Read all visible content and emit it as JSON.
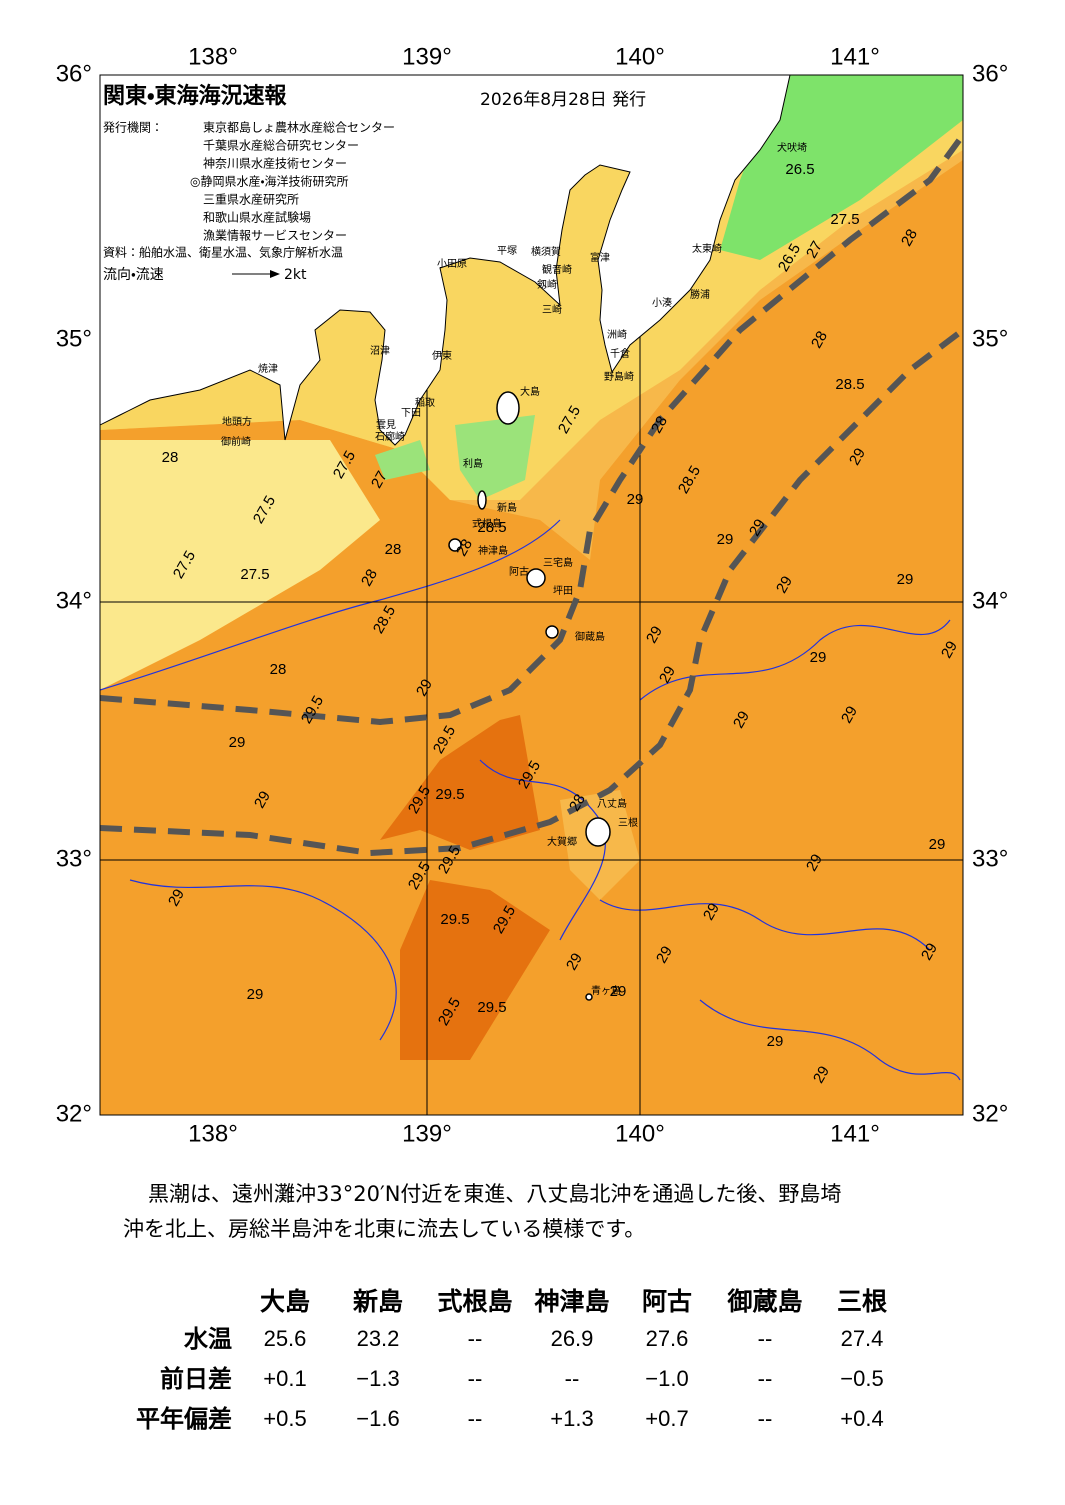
{
  "header": {
    "title": "関東・東海海況速報",
    "date": "2026年8月28日 発行",
    "issuer_label": "発行機関：",
    "issuers": [
      "東京都島しょ農林水産総合センター",
      "千葉県水産総合研究センター",
      "神奈川県水産技術センター",
      "◎静岡県水産・海洋技術研究所",
      "三重県水産研究所",
      "和歌山県水産試験場",
      "漁業情報サービスセンター"
    ],
    "source": "資料：船舶水温、衛星水温、気象庁解析水温",
    "legend_label": "流向・流速",
    "legend_speed": "2kt"
  },
  "map": {
    "lon_ticks": [
      "138°",
      "139°",
      "140°",
      "141°"
    ],
    "lat_ticks": [
      "36°",
      "35°",
      "34°",
      "33°",
      "32°"
    ],
    "places": [
      "大島",
      "利島",
      "新島",
      "式根島",
      "神津島",
      "三宅島",
      "阿古",
      "坪田",
      "御蔵島",
      "八丈島",
      "三根",
      "大賀郷",
      "青ヶ島",
      "小田原",
      "平塚",
      "横須賀",
      "観音崎",
      "剱崎",
      "三崎",
      "富津",
      "洲崎",
      "千倉",
      "野島崎",
      "小湊",
      "勝浦",
      "太東崎",
      "犬吠埼",
      "沼津",
      "伊東",
      "稲取",
      "下田",
      "雲見",
      "石廊崎",
      "焼津",
      "地頭方",
      "御前崎"
    ],
    "contour_labels": [
      "28",
      "27.5",
      "27.5",
      "27.5",
      "27.5",
      "27",
      "28",
      "28",
      "28.5",
      "28",
      "29.5",
      "29",
      "29",
      "29",
      "29.5",
      "29.5",
      "29.5",
      "29",
      "29",
      "29.5",
      "29.5",
      "29.5",
      "29.5",
      "29.5",
      "29.5",
      "29.5",
      "29",
      "29",
      "29",
      "29",
      "29",
      "29",
      "29",
      "29",
      "29",
      "29",
      "29",
      "29",
      "29",
      "29",
      "29",
      "29",
      "29",
      "28.5",
      "28",
      "28.5",
      "28",
      "28",
      "27.5",
      "27",
      "26.5",
      "26.5",
      "29",
      "27.5",
      "29",
      "29",
      "28",
      "28.5",
      "28",
      "29"
    ]
  },
  "summary": {
    "lines": [
      "黒潮は、遠州灘沖33°20′N付近を東進、八丈島北沖を通過した後、野島埼",
      "沖を北上、房総半島沖を北東に流去している模様です。"
    ]
  },
  "table": {
    "columns": [
      "大島",
      "新島",
      "式根島",
      "神津島",
      "阿古",
      "御蔵島",
      "三根"
    ],
    "rows": [
      {
        "label": "水温",
        "cells": [
          "25.6",
          "23.2",
          "--",
          "26.9",
          "27.6",
          "--",
          "27.4"
        ]
      },
      {
        "label": "前日差",
        "cells": [
          "+0.1",
          "−1.3",
          "--",
          "--",
          "−1.0",
          "--",
          "−0.5"
        ]
      },
      {
        "label": "平年偏差",
        "cells": [
          "+0.5",
          "−1.6",
          "--",
          "+1.3",
          "+0.7",
          "--",
          "+0.4"
        ]
      }
    ]
  }
}
